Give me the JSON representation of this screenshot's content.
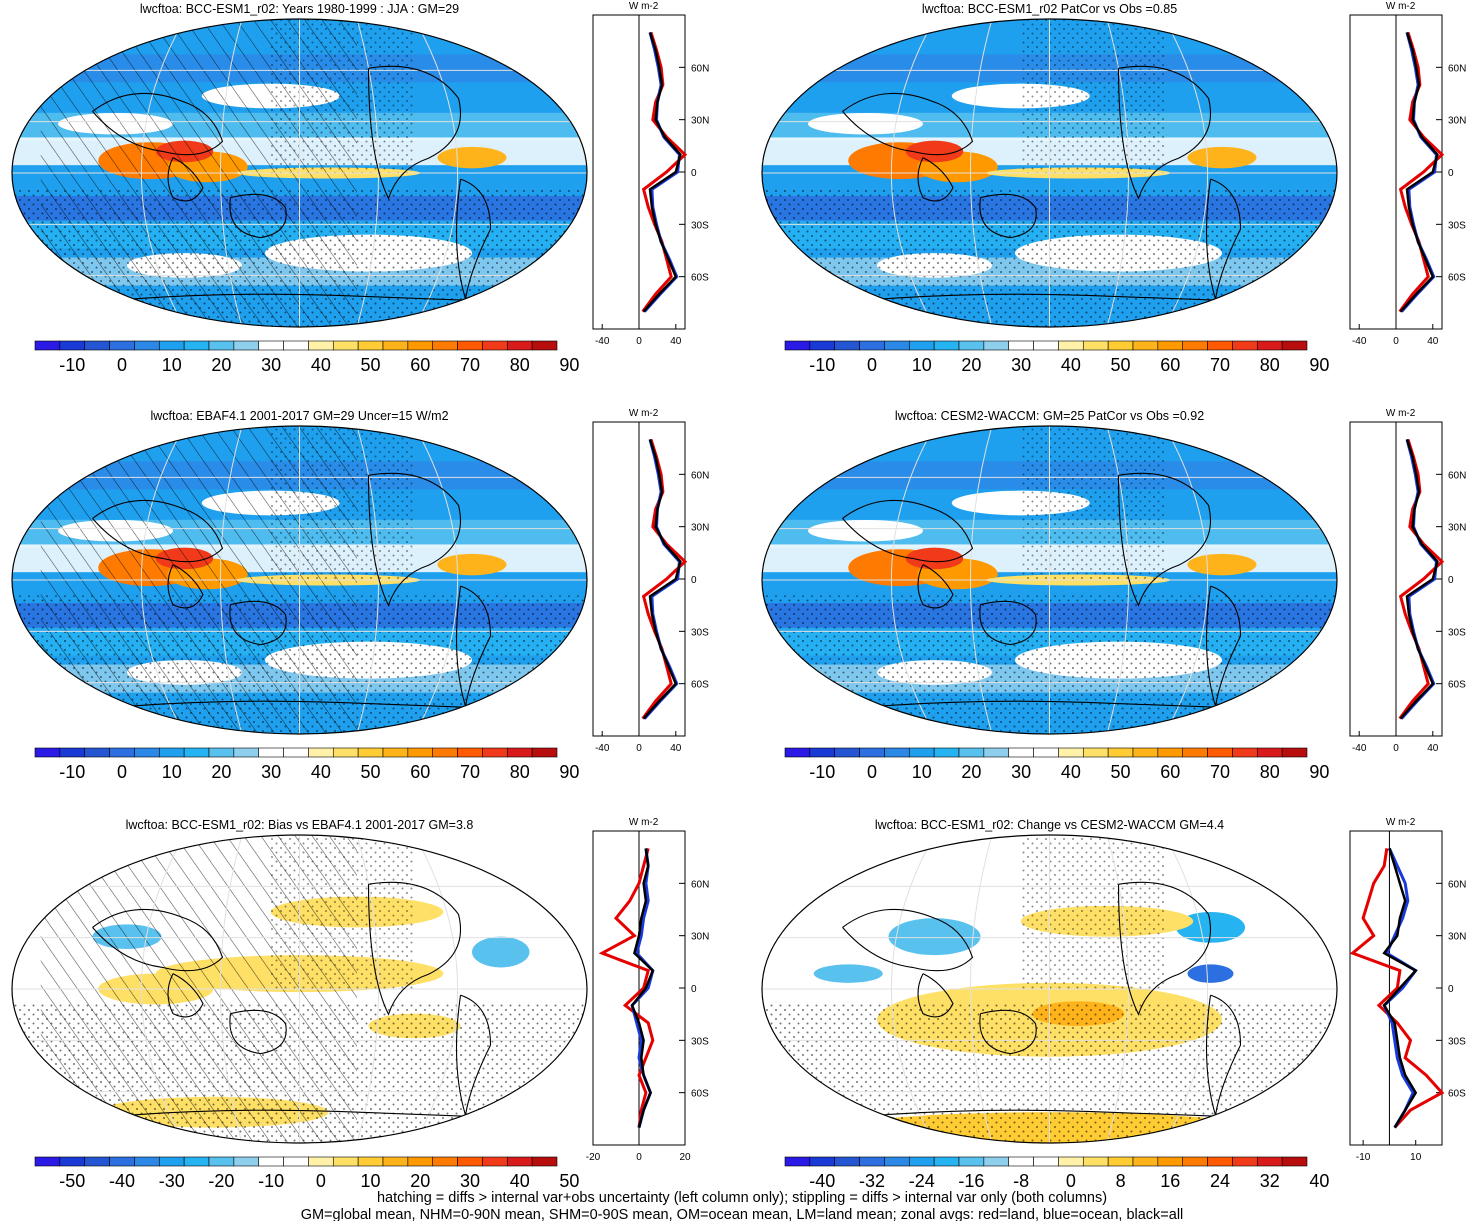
{
  "colors": {
    "scale": [
      "#2b1ae6",
      "#1a3ad6",
      "#2456d4",
      "#2b6fe0",
      "#2c88e6",
      "#1fa0ee",
      "#26b3f2",
      "#58c1ee",
      "#8fcfee",
      "#ffffff",
      "#ffffff",
      "#fff2a8",
      "#ffe066",
      "#ffcc33",
      "#ffb31a",
      "#ff9900",
      "#ff7a00",
      "#ff5a00",
      "#f03a1a",
      "#d81a1a",
      "#b80d0d"
    ],
    "land_line": "#e60000",
    "ocean_line": "#1a3adc",
    "all_line": "#000000"
  },
  "panels": [
    {
      "title": "lwcftoa: BCC-ESM1_r02: Years 1980-1999 : JJA : GM=29",
      "colorbar_labels": [
        "-10",
        "0",
        "10",
        "20",
        "30",
        "40",
        "50",
        "60",
        "70",
        "80",
        "90"
      ],
      "zonal_x_ticks": [
        "-40",
        "0",
        "40"
      ],
      "zonal_unit": "W m-2"
    },
    {
      "title": "lwcftoa: BCC-ESM1_r02 PatCor vs Obs =0.85",
      "colorbar_labels": [
        "-10",
        "0",
        "10",
        "20",
        "30",
        "40",
        "50",
        "60",
        "70",
        "80",
        "90"
      ],
      "zonal_x_ticks": [
        "-40",
        "0",
        "40"
      ],
      "zonal_unit": "W m-2"
    },
    {
      "title": "lwcftoa: EBAF4.1 2001-2017 GM=29 Uncer=15 W/m2",
      "colorbar_labels": [
        "-10",
        "0",
        "10",
        "20",
        "30",
        "40",
        "50",
        "60",
        "70",
        "80",
        "90"
      ],
      "zonal_x_ticks": [
        "-40",
        "0",
        "40"
      ],
      "zonal_unit": "W m-2"
    },
    {
      "title": "lwcftoa: CESM2-WACCM: GM=25 PatCor vs Obs =0.92",
      "colorbar_labels": [
        "-10",
        "0",
        "10",
        "20",
        "30",
        "40",
        "50",
        "60",
        "70",
        "80",
        "90"
      ],
      "zonal_x_ticks": [
        "-40",
        "0",
        "40"
      ],
      "zonal_unit": "W m-2"
    },
    {
      "title": "lwcftoa: BCC-ESM1_r02: Bias vs EBAF4.1 2001-2017 GM=3.8",
      "colorbar_labels": [
        "-50",
        "-40",
        "-30",
        "-20",
        "-10",
        "0",
        "10",
        "20",
        "30",
        "40",
        "50"
      ],
      "zonal_x_ticks": [
        "-20",
        "0",
        "20"
      ],
      "zonal_unit": "W m-2"
    },
    {
      "title": "lwcftoa: BCC-ESM1_r02: Change vs CESM2-WACCM GM=4.4",
      "colorbar_labels": [
        "-40",
        "-32",
        "-24",
        "-16",
        "-8",
        "0",
        "8",
        "16",
        "24",
        "32",
        "40"
      ],
      "zonal_x_ticks": [
        "-10",
        "10"
      ],
      "zonal_unit": "W m-2"
    }
  ],
  "lat_ticks": [
    "60N",
    "30N",
    "0",
    "30S",
    "60S"
  ],
  "footer": {
    "line1": "hatching = diffs > internal var+obs uncertainty (left column only); stippling = diffs > internal var only (both columns)",
    "line2": "GM=global mean, NHM=0-90N mean, SHM=0-90S mean, OM=ocean mean, LM=land mean; zonal avgs: red=land, blue=ocean, black=all"
  },
  "chart_data": {
    "type": "heatmap",
    "variable": "lwcftoa",
    "units": "W m-2",
    "panels": [
      {
        "title": "lwcftoa: BCC-ESM1_r02: Years 1980-1999 : JJA : GM=29",
        "global_mean": 29,
        "colorbar_range": [
          -10,
          90
        ]
      },
      {
        "title": "lwcftoa: BCC-ESM1_r02 PatCor vs Obs =0.85",
        "pattern_correlation": 0.85,
        "colorbar_range": [
          -10,
          90
        ]
      },
      {
        "title": "lwcftoa: EBAF4.1 2001-2017 GM=29 Uncer=15 W/m2",
        "global_mean": 29,
        "uncertainty": 15,
        "colorbar_range": [
          -10,
          90
        ]
      },
      {
        "title": "lwcftoa: CESM2-WACCM: GM=25 PatCor vs Obs =0.92",
        "global_mean": 25,
        "pattern_correlation": 0.92,
        "colorbar_range": [
          -10,
          90
        ]
      },
      {
        "title": "lwcftoa: BCC-ESM1_r02: Bias vs EBAF4.1 2001-2017 GM=3.8",
        "global_mean": 3.8,
        "colorbar_range": [
          -50,
          50
        ]
      },
      {
        "title": "lwcftoa: BCC-ESM1_r02: Change vs CESM2-WACCM GM=4.4",
        "global_mean": 4.4,
        "colorbar_range": [
          -40,
          40
        ]
      }
    ],
    "zonal_mean_lat": [
      80,
      70,
      60,
      50,
      40,
      30,
      20,
      10,
      0,
      -10,
      -20,
      -30,
      -40,
      -50,
      -60,
      -70,
      -80
    ],
    "zonal_mean_top_rows": {
      "all": [
        12,
        18,
        22,
        25,
        20,
        18,
        28,
        45,
        40,
        12,
        14,
        18,
        24,
        32,
        40,
        22,
        5
      ],
      "land": [
        13,
        19,
        24,
        26,
        18,
        15,
        30,
        50,
        30,
        5,
        10,
        17,
        25,
        30,
        35,
        18,
        4
      ],
      "ocean": [
        12,
        17,
        21,
        24,
        20,
        19,
        27,
        44,
        42,
        14,
        15,
        19,
        24,
        33,
        41,
        23,
        6
      ]
    },
    "zonal_mean_bias": {
      "all": [
        3,
        4,
        2,
        3,
        1,
        0,
        -2,
        6,
        3,
        -3,
        0,
        2,
        1,
        2,
        5,
        2,
        0
      ],
      "land": [
        4,
        2,
        0,
        -4,
        -10,
        -2,
        -16,
        4,
        2,
        -6,
        4,
        6,
        3,
        0,
        3,
        1,
        0
      ],
      "ocean": [
        3,
        4,
        3,
        4,
        2,
        1,
        -1,
        6,
        4,
        -3,
        -1,
        1,
        0,
        2,
        5,
        2,
        0
      ]
    },
    "zonal_mean_change": {
      "all": [
        0,
        2,
        4,
        6,
        4,
        3,
        -2,
        10,
        4,
        -2,
        2,
        3,
        4,
        6,
        10,
        6,
        2
      ],
      "land": [
        -1,
        -2,
        -6,
        -8,
        -10,
        -6,
        -14,
        4,
        3,
        -4,
        3,
        8,
        6,
        14,
        20,
        8,
        2
      ],
      "ocean": [
        0,
        3,
        6,
        7,
        5,
        2,
        -1,
        10,
        5,
        -2,
        1,
        2,
        3,
        5,
        9,
        6,
        2
      ]
    }
  }
}
